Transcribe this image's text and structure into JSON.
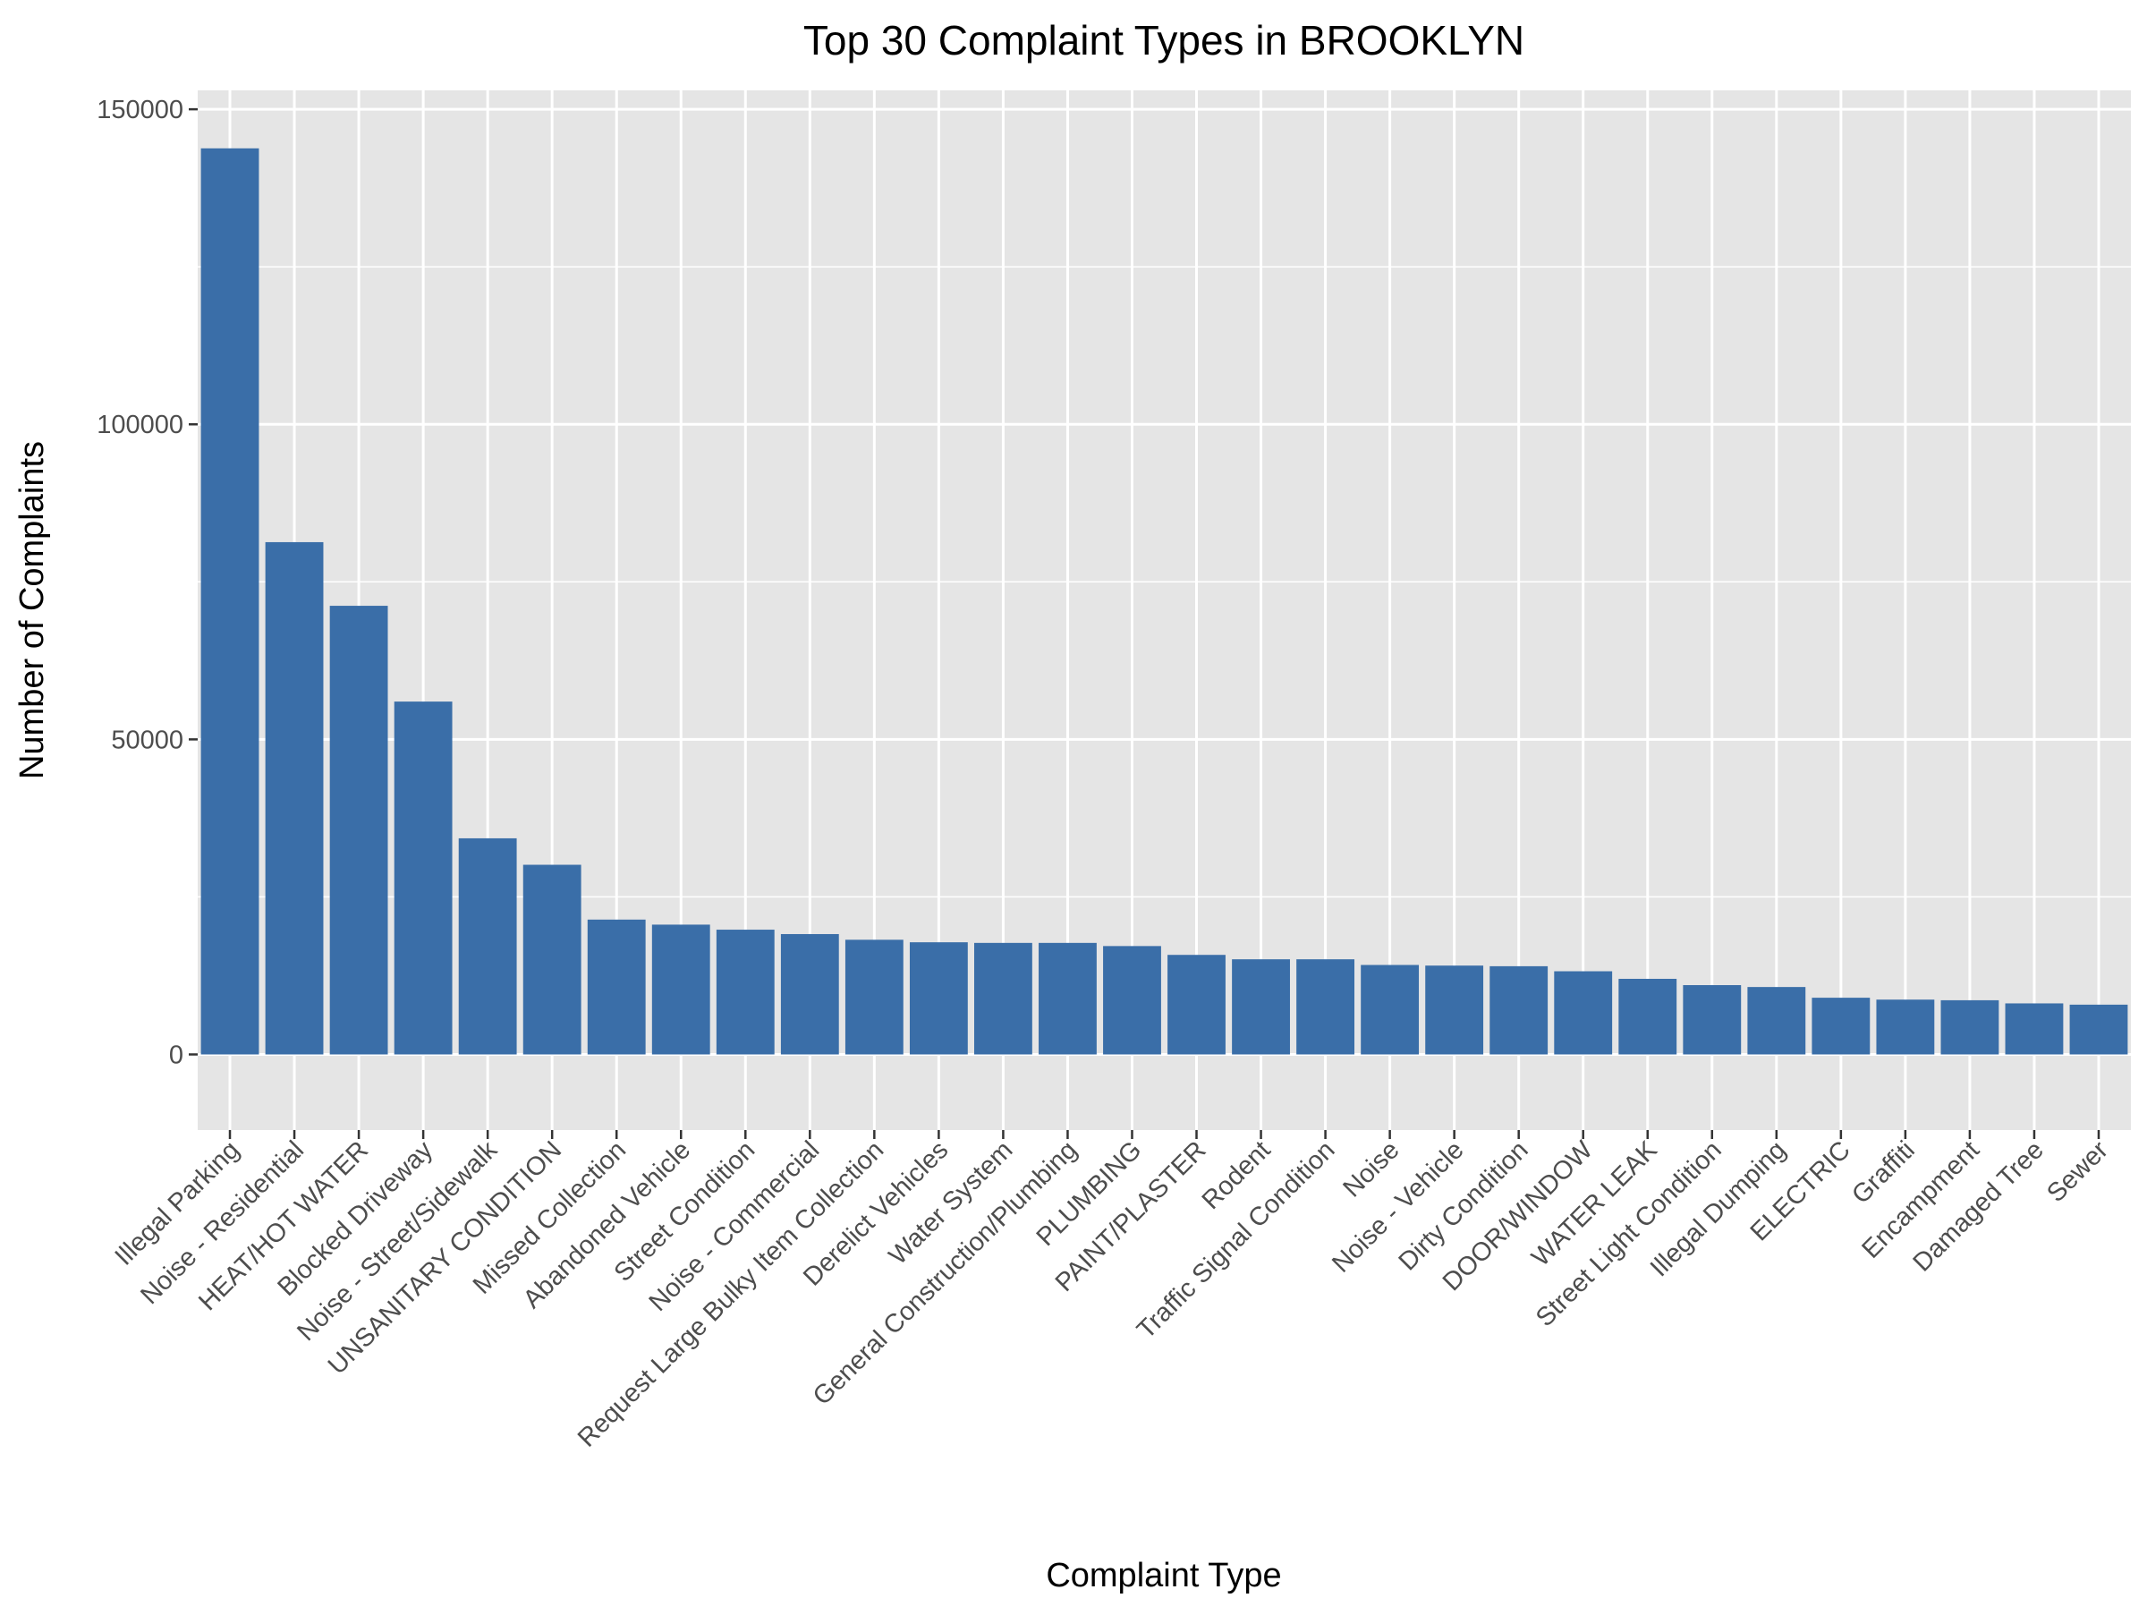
{
  "chart_data": {
    "type": "bar",
    "title": "Top 30 Complaint Types in BROOKLYN",
    "xlabel": "Complaint Type",
    "ylabel": "Number of Complaints",
    "ylim": [
      -12000,
      153000
    ],
    "yticks": [
      0,
      50000,
      100000,
      150000
    ],
    "ytick_labels": [
      "0",
      "50000",
      "100000",
      "150000"
    ],
    "grid": true,
    "colors": {
      "bar": "#3a6ea8",
      "panel": "#e5e5e5",
      "grid": "#ffffff",
      "tick_text": "#4d4d4d"
    },
    "categories": [
      "Illegal Parking",
      "Noise - Residential",
      "HEAT/HOT WATER",
      "Blocked Driveway",
      "Noise - Street/Sidewalk",
      "UNSANITARY CONDITION",
      "Missed Collection",
      "Abandoned Vehicle",
      "Street Condition",
      "Noise - Commercial",
      "Request Large Bulky Item Collection",
      "Derelict Vehicles",
      "Water System",
      "General Construction/Plumbing",
      "PLUMBING",
      "PAINT/PLASTER",
      "Rodent",
      "Traffic Signal Condition",
      "Noise",
      "Noise - Vehicle",
      "Dirty Condition",
      "DOOR/WINDOW",
      "WATER LEAK",
      "Street Light Condition",
      "Illegal Dumping",
      "ELECTRIC",
      "Graffiti",
      "Encampment",
      "Damaged Tree",
      "Sewer"
    ],
    "values": [
      143800,
      81300,
      71200,
      56000,
      34300,
      30100,
      21400,
      20600,
      19800,
      19100,
      18200,
      17800,
      17700,
      17700,
      17200,
      15800,
      15100,
      15100,
      14200,
      14100,
      14000,
      13200,
      12000,
      11000,
      10700,
      9000,
      8700,
      8600,
      8100,
      7900
    ]
  }
}
